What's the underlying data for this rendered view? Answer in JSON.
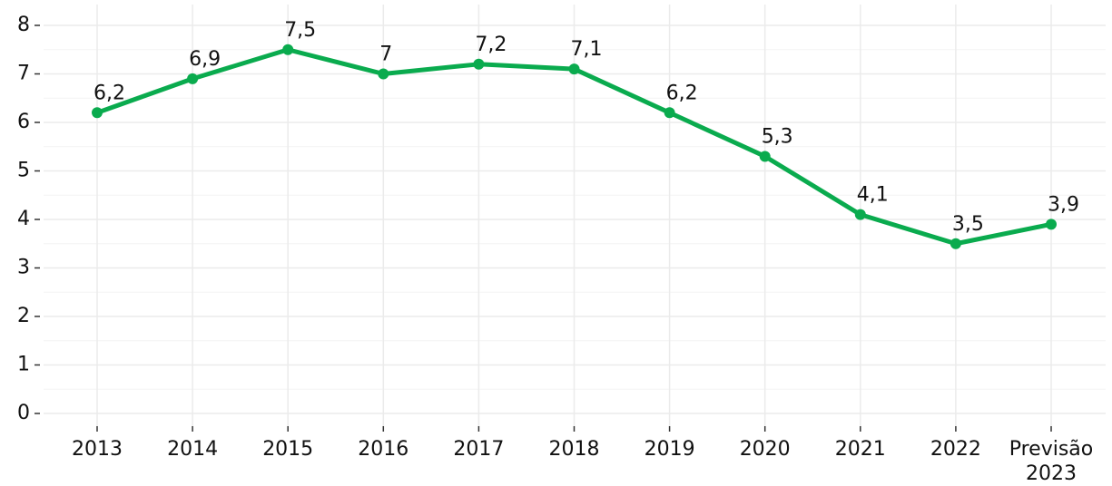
{
  "chart_data": {
    "type": "line",
    "categories": [
      "2013",
      "2014",
      "2015",
      "2016",
      "2017",
      "2018",
      "2019",
      "2020",
      "2021",
      "2022",
      "Previsão 2023"
    ],
    "series": [
      {
        "name": "",
        "color": "#0aab4e",
        "values": [
          6.2,
          6.9,
          7.5,
          7,
          7.2,
          7.1,
          6.2,
          5.3,
          4.1,
          3.5,
          3.9
        ],
        "value_labels": [
          "6,2",
          "6,9",
          "7,5",
          "7",
          "7,2",
          "7,1",
          "6,2",
          "5,3",
          "4,1",
          "3,5",
          "3,9"
        ]
      }
    ],
    "ylim": [
      0,
      8
    ],
    "yticks": [
      0,
      1,
      2,
      3,
      4,
      5,
      6,
      7,
      8
    ],
    "grid": true
  }
}
